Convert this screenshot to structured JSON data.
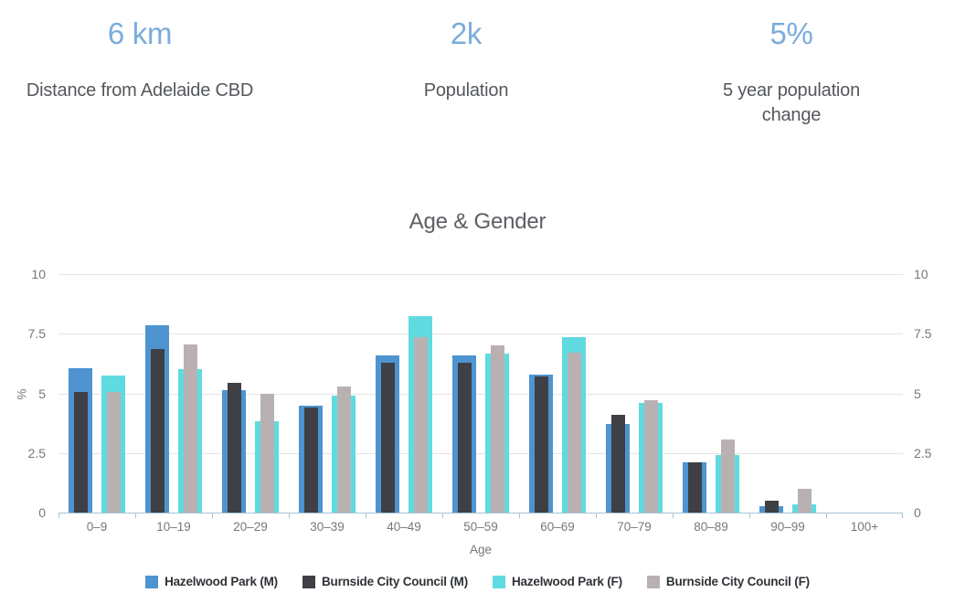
{
  "stats": [
    {
      "value": "6 km",
      "label": "Distance from Adelaide CBD"
    },
    {
      "value": "2k",
      "label": "Population"
    },
    {
      "value": "5%",
      "label": "5 year population change"
    }
  ],
  "chart_data": {
    "type": "bar",
    "title": "Age & Gender",
    "xlabel": "Age",
    "ylabel": "%",
    "ylim": [
      0,
      10
    ],
    "yticks": [
      0,
      2.5,
      5,
      7.5,
      10
    ],
    "ytick_labels": [
      "0",
      "2.5",
      "5",
      "7.5",
      "10"
    ],
    "grid": true,
    "legend_position": "bottom",
    "categories": [
      "0–9",
      "10–19",
      "20–29",
      "30–39",
      "40–49",
      "50–59",
      "60–69",
      "70–79",
      "80–89",
      "90–99",
      "100+"
    ],
    "series": [
      {
        "name": "Hazelwood Park (M)",
        "color": "#4d94d0",
        "values": [
          6.05,
          7.85,
          5.15,
          4.5,
          6.6,
          6.6,
          5.8,
          3.7,
          2.1,
          0.25,
          0
        ]
      },
      {
        "name": "Burnside City Council (M)",
        "color": "#3e4045",
        "values": [
          5.05,
          6.85,
          5.45,
          4.4,
          6.3,
          6.3,
          5.7,
          4.1,
          2.1,
          0.5,
          0
        ]
      },
      {
        "name": "Hazelwood Park (F)",
        "color": "#5fdbe0",
        "values": [
          5.75,
          6.0,
          3.85,
          4.9,
          8.25,
          6.65,
          7.35,
          4.6,
          2.4,
          0.35,
          0
        ]
      },
      {
        "name": "Burnside City Council (F)",
        "color": "#b9b1b1",
        "values": [
          5.05,
          7.05,
          5.0,
          5.3,
          7.35,
          7.0,
          6.7,
          4.7,
          3.05,
          1.0,
          0
        ]
      }
    ]
  },
  "colors": {
    "stat_value_blue": "#7bacdc",
    "axis_line": "#a9c2d2",
    "gridline": "#e4e4e4",
    "label_gray": "#75787c"
  }
}
